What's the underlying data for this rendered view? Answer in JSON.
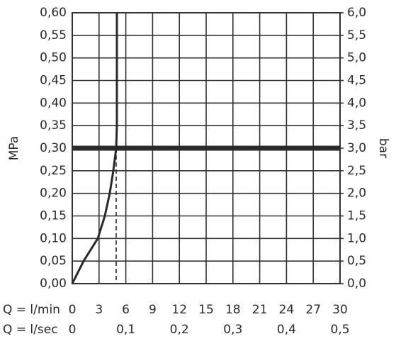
{
  "chart_data": {
    "type": "line",
    "xlabel": "Q = l/min",
    "x2label": "Q = l/sec",
    "ylabel": "MPa",
    "y2label": "bar",
    "xlim": [
      0,
      30
    ],
    "xticks": [
      0,
      3,
      6,
      9,
      12,
      15,
      18,
      21,
      24,
      27,
      30
    ],
    "x2lim": [
      0,
      0.5
    ],
    "x2ticks": [
      0,
      {
        "value": 0.1,
        "label": "0,1"
      },
      {
        "value": 0.2,
        "label": "0,2"
      },
      {
        "value": 0.3,
        "label": "0,3"
      },
      {
        "value": 0.4,
        "label": "0,4"
      },
      {
        "value": 0.5,
        "label": "0,5"
      }
    ],
    "ylim": [
      0,
      0.6
    ],
    "yticks": [
      {
        "value": 0,
        "label": "0,00"
      },
      {
        "value": 0.05,
        "label": "0,05"
      },
      {
        "value": 0.1,
        "label": "0,10"
      },
      {
        "value": 0.15,
        "label": "0,15"
      },
      {
        "value": 0.2,
        "label": "0,20"
      },
      {
        "value": 0.25,
        "label": "0,25"
      },
      {
        "value": 0.3,
        "label": "0,30"
      },
      {
        "value": 0.35,
        "label": "0,35"
      },
      {
        "value": 0.4,
        "label": "0,40"
      },
      {
        "value": 0.45,
        "label": "0,45"
      },
      {
        "value": 0.5,
        "label": "0,50"
      },
      {
        "value": 0.55,
        "label": "0,55"
      },
      {
        "value": 0.6,
        "label": "0,60"
      }
    ],
    "y2lim": [
      0,
      6
    ],
    "y2ticks": [
      {
        "value": 0,
        "label": "0,0"
      },
      {
        "value": 0.5,
        "label": "0,5"
      },
      {
        "value": 1,
        "label": "1,0"
      },
      {
        "value": 1.5,
        "label": "1,5"
      },
      {
        "value": 2,
        "label": "2,0"
      },
      {
        "value": 2.5,
        "label": "2,5"
      },
      {
        "value": 3,
        "label": "3,0"
      },
      {
        "value": 3.5,
        "label": "3,5"
      },
      {
        "value": 4,
        "label": "4,0"
      },
      {
        "value": 4.5,
        "label": "4,5"
      },
      {
        "value": 5,
        "label": "5,0"
      },
      {
        "value": 5.5,
        "label": "5,5"
      },
      {
        "value": 6,
        "label": "6,0"
      }
    ],
    "grid": true,
    "x": [
      0,
      1.27,
      2.86,
      3.65,
      4.2,
      4.6,
      4.92,
      5,
      5
    ],
    "series": [
      {
        "color": "#2a2a2a",
        "values": [
          0,
          0.05,
          0.1,
          0.15,
          0.2,
          0.25,
          0.3,
          0.35,
          0.6
        ]
      }
    ],
    "hline": 0.3,
    "dropline": {
      "x": 4.92,
      "y": 0.3
    }
  }
}
